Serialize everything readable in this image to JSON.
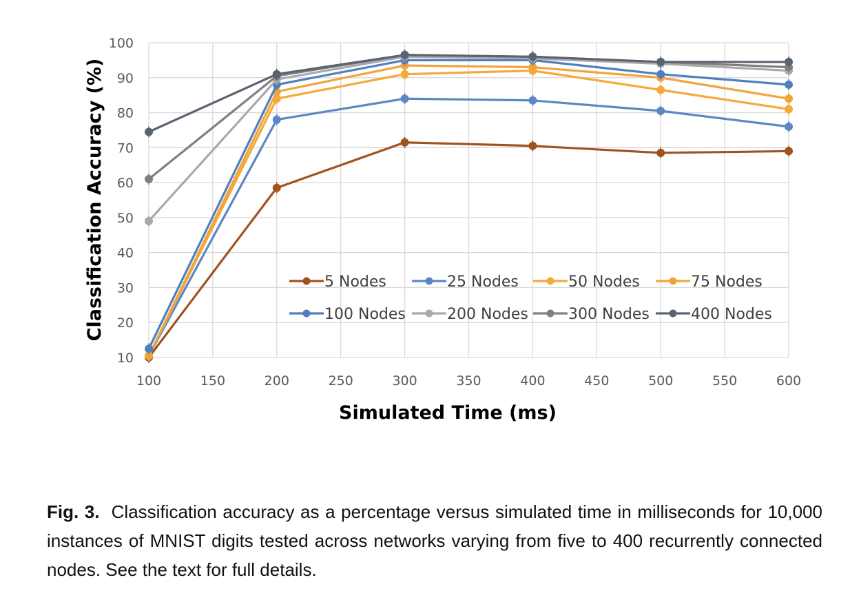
{
  "chart_data": {
    "type": "line",
    "title": "",
    "xlabel": "Simulated Time (ms)",
    "ylabel": "Classification Accuracy (%)",
    "xlim": [
      100,
      600
    ],
    "ylim": [
      10,
      100
    ],
    "xticks": [
      100,
      150,
      200,
      250,
      300,
      350,
      400,
      450,
      500,
      550,
      600
    ],
    "yticks": [
      10,
      20,
      30,
      40,
      50,
      60,
      70,
      80,
      90,
      100
    ],
    "grid": true,
    "legend_position": "inside-bottom-right",
    "x": [
      100,
      200,
      300,
      400,
      500,
      600
    ],
    "series": [
      {
        "name": "5 Nodes",
        "color": "#a0521f",
        "values": [
          10.0,
          58.5,
          71.5,
          70.5,
          68.5,
          69.0
        ]
      },
      {
        "name": "25 Nodes",
        "color": "#5b87c5",
        "values": [
          10.5,
          78.0,
          84.0,
          83.5,
          80.5,
          76.0
        ]
      },
      {
        "name": "50 Nodes",
        "color": "#f5a93a",
        "values": [
          10.5,
          84.0,
          91.0,
          92.0,
          86.5,
          81.0
        ]
      },
      {
        "name": "75 Nodes",
        "color": "#f0a53c",
        "values": [
          10.5,
          86.0,
          93.5,
          93.0,
          90.0,
          84.0
        ]
      },
      {
        "name": "100 Nodes",
        "color": "#4f7fbf",
        "values": [
          12.5,
          88.0,
          95.0,
          95.0,
          91.0,
          88.0
        ]
      },
      {
        "name": "200 Nodes",
        "color": "#a9a9a9",
        "values": [
          49.0,
          89.5,
          96.0,
          95.5,
          94.0,
          92.0
        ]
      },
      {
        "name": "300 Nodes",
        "color": "#7f7f7f",
        "values": [
          61.0,
          90.5,
          96.5,
          96.0,
          94.5,
          93.0
        ]
      },
      {
        "name": "400 Nodes",
        "color": "#596470",
        "values": [
          74.5,
          91.0,
          96.5,
          96.0,
          94.5,
          94.5
        ]
      }
    ]
  },
  "caption": {
    "label": "Fig. 3.",
    "text": "Classification accuracy as a percentage versus simulated time in milliseconds for 10,000 instances of MNIST digits tested across networks varying from five to 400 recurrently connected nodes. See the text for full details."
  }
}
